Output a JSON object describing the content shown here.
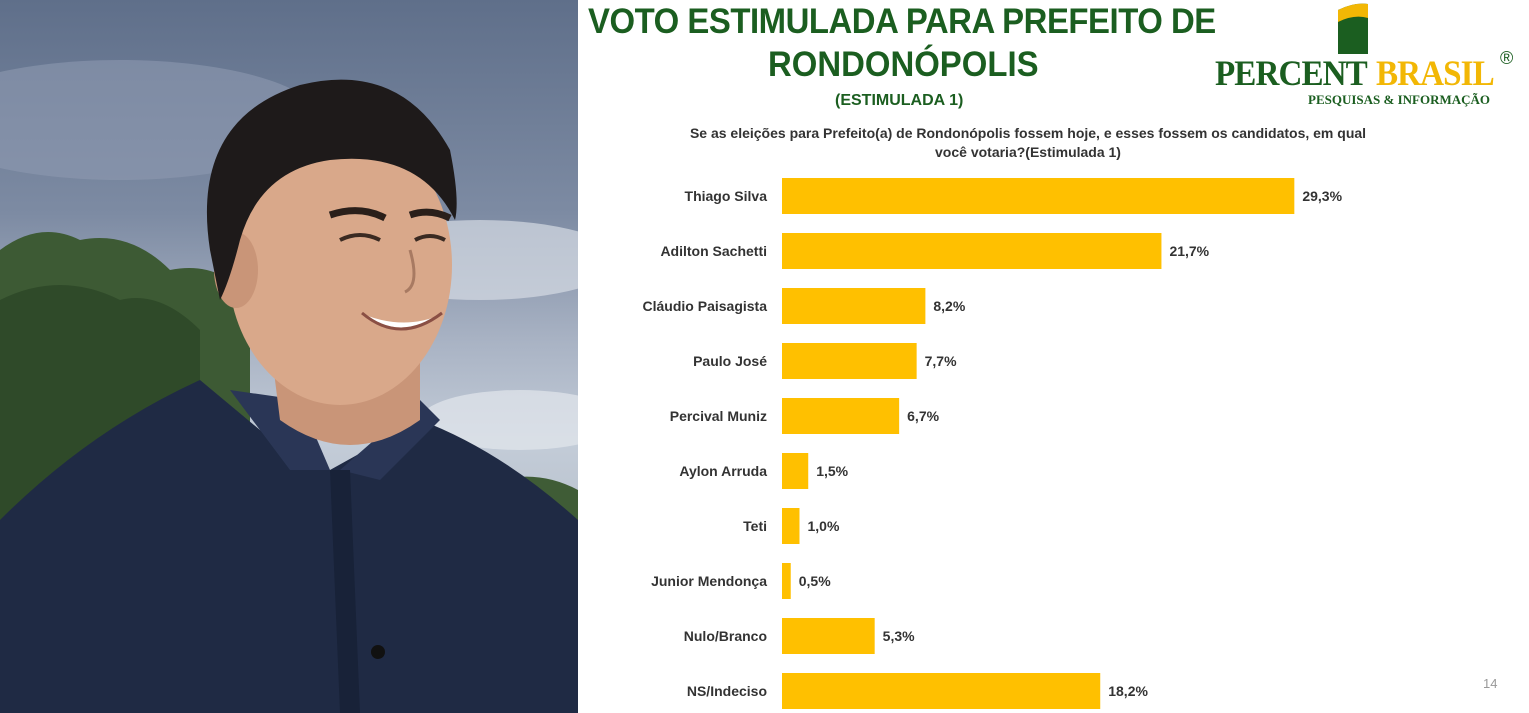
{
  "slide": {
    "title_line1": "VOTO ESTIMULADA PARA PREFEITO DE",
    "title_line2": "RONDONÓPOLIS",
    "title_line3": "(ESTIMULADA 1)",
    "question": "Se as eleições para Prefeito(a) de Rondonópolis fossem hoje, e esses fossem os candidatos, em qual você votaria?(Estimulada 1)",
    "page_number": "14"
  },
  "logo": {
    "word1": "PERCENT",
    "word2": "BRASIL",
    "registered": "®",
    "tagline": "PESQUISAS & INFORMAÇÃO"
  },
  "colors": {
    "bar": "#FFC000",
    "title_green": "#1B5E20",
    "brand_yellow": "#F2B705"
  },
  "chart_data": {
    "type": "bar",
    "orientation": "horizontal",
    "categories": [
      "Thiago Silva",
      "Adilton Sachetti",
      "Cláudio Paisagista",
      "Paulo José",
      "Percival Muniz",
      "Aylon Arruda",
      "Teti",
      "Junior Mendonça",
      "Nulo/Branco",
      "NS/Indeciso"
    ],
    "values": [
      29.3,
      21.7,
      8.2,
      7.7,
      6.7,
      1.5,
      1.0,
      0.5,
      5.3,
      18.2
    ],
    "labels": [
      "29,3%",
      "21,7%",
      "8,2%",
      "7,7%",
      "6,7%",
      "1,5%",
      "1,0%",
      "0,5%",
      "5,3%",
      "18,2%"
    ],
    "unit": "%",
    "xlim": [
      0,
      35
    ],
    "grid": false,
    "legend": "none"
  }
}
